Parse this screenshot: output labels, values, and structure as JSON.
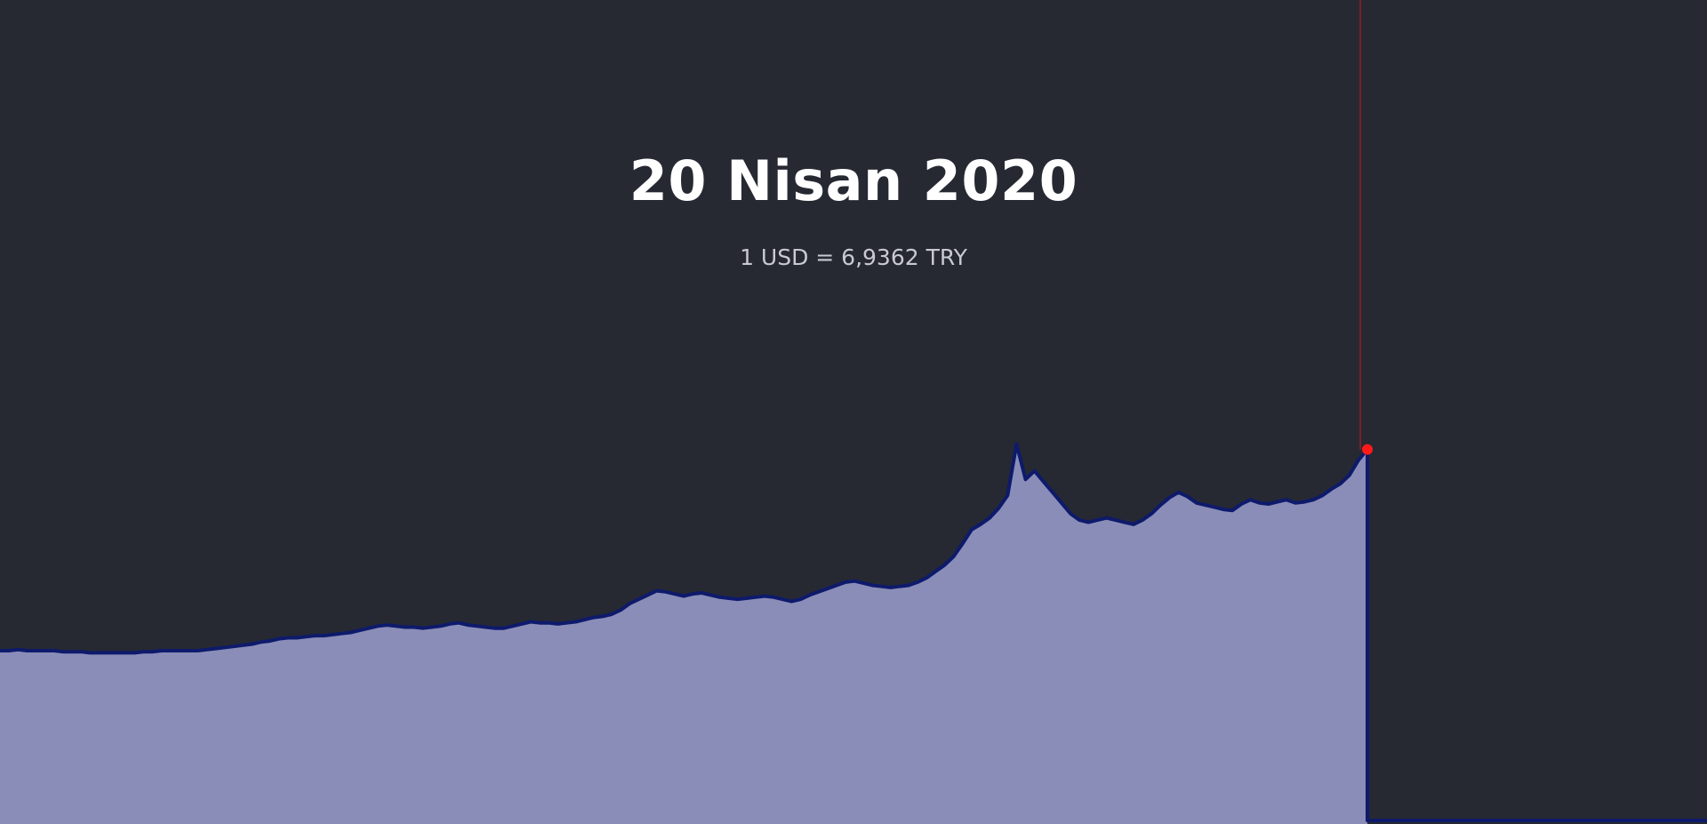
{
  "header": {
    "date": "20 Nisan 2020",
    "rate": "1 USD = 6,9362 TRY"
  },
  "colors": {
    "background": "#262932",
    "line": "#0e1a6b",
    "fill": "#8a8db8",
    "cursor": "#d0161e",
    "marker": "#ff1a1a"
  },
  "chart_data": {
    "type": "area",
    "title": "",
    "xlabel": "",
    "ylabel": "",
    "grid": false,
    "legend": "none",
    "ylim": [
      0,
      7.7
    ],
    "cursor_index": 152,
    "series": [
      {
        "values": [
          1.62,
          1.62,
          1.63,
          1.62,
          1.62,
          1.62,
          1.62,
          1.61,
          1.61,
          1.61,
          1.6,
          1.6,
          1.6,
          1.6,
          1.6,
          1.6,
          1.61,
          1.61,
          1.62,
          1.62,
          1.62,
          1.62,
          1.62,
          1.63,
          1.64,
          1.65,
          1.66,
          1.67,
          1.68,
          1.7,
          1.71,
          1.73,
          1.74,
          1.74,
          1.75,
          1.76,
          1.76,
          1.77,
          1.78,
          1.79,
          1.81,
          1.83,
          1.85,
          1.86,
          1.85,
          1.84,
          1.84,
          1.83,
          1.84,
          1.85,
          1.87,
          1.88,
          1.86,
          1.85,
          1.84,
          1.83,
          1.83,
          1.85,
          1.87,
          1.89,
          1.88,
          1.88,
          1.87,
          1.88,
          1.89,
          1.91,
          1.93,
          1.94,
          1.96,
          2.0,
          2.06,
          2.1,
          2.14,
          2.18,
          2.17,
          2.15,
          2.13,
          2.15,
          2.16,
          2.14,
          2.12,
          2.11,
          2.1,
          2.11,
          2.12,
          2.13,
          2.12,
          2.1,
          2.08,
          2.1,
          2.14,
          2.17,
          2.2,
          2.23,
          2.26,
          2.27,
          2.25,
          2.23,
          2.22,
          2.21,
          2.22,
          2.23,
          2.26,
          2.3,
          2.36,
          2.42,
          2.5,
          2.62,
          2.75,
          2.8,
          2.86,
          2.95,
          3.07,
          3.55,
          3.22,
          3.3,
          3.2,
          3.1,
          3.0,
          2.9,
          2.84,
          2.82,
          2.84,
          2.86,
          2.84,
          2.82,
          2.8,
          2.84,
          2.9,
          2.98,
          3.05,
          3.1,
          3.06,
          3.0,
          2.98,
          2.96,
          2.94,
          2.93,
          2.99,
          3.03,
          3.0,
          2.99,
          3.01,
          3.03,
          3.0,
          3.01,
          3.03,
          3.07,
          3.13,
          3.18,
          3.26,
          3.4,
          3.5
        ]
      }
    ]
  }
}
